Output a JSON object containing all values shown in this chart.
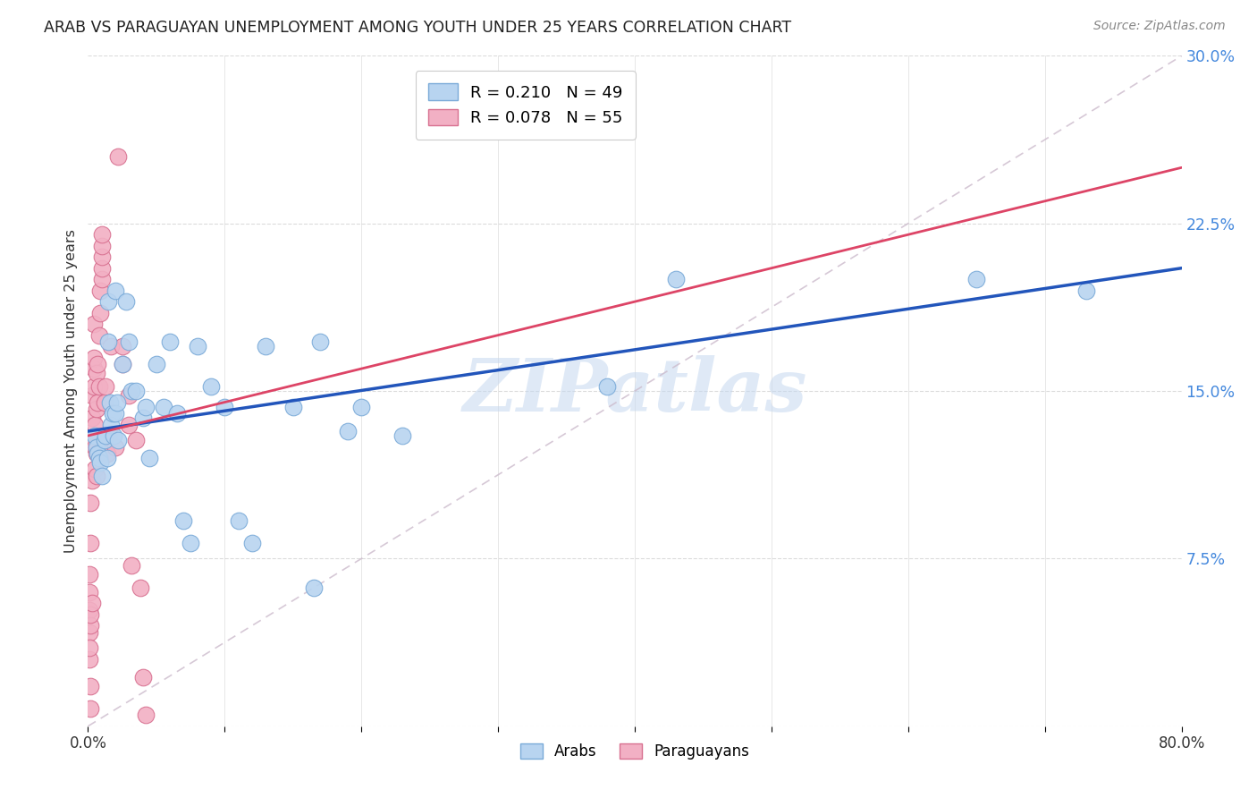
{
  "title": "ARAB VS PARAGUAYAN UNEMPLOYMENT AMONG YOUTH UNDER 25 YEARS CORRELATION CHART",
  "source": "Source: ZipAtlas.com",
  "ylabel": "Unemployment Among Youth under 25 years",
  "xlim": [
    0.0,
    0.8
  ],
  "ylim": [
    0.0,
    0.3
  ],
  "yticks": [
    0.0,
    0.075,
    0.15,
    0.225,
    0.3
  ],
  "yticklabels": [
    "",
    "7.5%",
    "15.0%",
    "22.5%",
    "30.0%"
  ],
  "xtick_positions": [
    0.0,
    0.1,
    0.2,
    0.3,
    0.4,
    0.5,
    0.6,
    0.7,
    0.8
  ],
  "xticklabels_show": [
    "0.0%",
    "",
    "",
    "",
    "",
    "",
    "",
    "",
    "80.0%"
  ],
  "watermark": "ZIPatlas",
  "watermark_color": "#c5d8f0",
  "arab_color": "#b8d4f0",
  "arab_edge_color": "#7aaad8",
  "paraguayan_color": "#f2b0c4",
  "paraguayan_edge_color": "#d87090",
  "arab_line_color": "#2255bb",
  "paraguayan_line_color": "#dd4466",
  "ref_line_color": "#ccbbcc",
  "arab_x": [
    0.005,
    0.006,
    0.007,
    0.008,
    0.009,
    0.01,
    0.012,
    0.013,
    0.014,
    0.015,
    0.015,
    0.016,
    0.017,
    0.018,
    0.019,
    0.02,
    0.02,
    0.021,
    0.022,
    0.025,
    0.028,
    0.03,
    0.032,
    0.035,
    0.04,
    0.042,
    0.045,
    0.05,
    0.055,
    0.06,
    0.065,
    0.07,
    0.075,
    0.08,
    0.09,
    0.1,
    0.11,
    0.12,
    0.13,
    0.15,
    0.165,
    0.17,
    0.19,
    0.2,
    0.23,
    0.38,
    0.43,
    0.65,
    0.73
  ],
  "arab_y": [
    0.13,
    0.125,
    0.122,
    0.12,
    0.118,
    0.112,
    0.128,
    0.13,
    0.12,
    0.19,
    0.172,
    0.145,
    0.135,
    0.14,
    0.13,
    0.195,
    0.14,
    0.145,
    0.128,
    0.162,
    0.19,
    0.172,
    0.15,
    0.15,
    0.138,
    0.143,
    0.12,
    0.162,
    0.143,
    0.172,
    0.14,
    0.092,
    0.082,
    0.17,
    0.152,
    0.143,
    0.092,
    0.082,
    0.17,
    0.143,
    0.062,
    0.172,
    0.132,
    0.143,
    0.13,
    0.152,
    0.2,
    0.2,
    0.195
  ],
  "paraguayan_x": [
    0.001,
    0.001,
    0.001,
    0.001,
    0.001,
    0.001,
    0.002,
    0.002,
    0.002,
    0.002,
    0.002,
    0.002,
    0.003,
    0.003,
    0.003,
    0.003,
    0.003,
    0.004,
    0.004,
    0.004,
    0.004,
    0.005,
    0.005,
    0.005,
    0.006,
    0.006,
    0.006,
    0.006,
    0.007,
    0.007,
    0.008,
    0.008,
    0.009,
    0.009,
    0.01,
    0.01,
    0.01,
    0.01,
    0.01,
    0.012,
    0.013,
    0.014,
    0.015,
    0.017,
    0.02,
    0.022,
    0.025,
    0.025,
    0.03,
    0.03,
    0.032,
    0.035,
    0.038,
    0.04,
    0.042
  ],
  "paraguayan_y": [
    0.03,
    0.042,
    0.052,
    0.06,
    0.068,
    0.035,
    0.082,
    0.1,
    0.045,
    0.05,
    0.008,
    0.018,
    0.11,
    0.128,
    0.138,
    0.148,
    0.055,
    0.152,
    0.16,
    0.165,
    0.18,
    0.115,
    0.125,
    0.135,
    0.112,
    0.142,
    0.122,
    0.158,
    0.162,
    0.145,
    0.152,
    0.175,
    0.185,
    0.195,
    0.2,
    0.205,
    0.21,
    0.215,
    0.22,
    0.145,
    0.152,
    0.122,
    0.13,
    0.17,
    0.125,
    0.255,
    0.162,
    0.17,
    0.135,
    0.148,
    0.072,
    0.128,
    0.062,
    0.022,
    0.005
  ]
}
